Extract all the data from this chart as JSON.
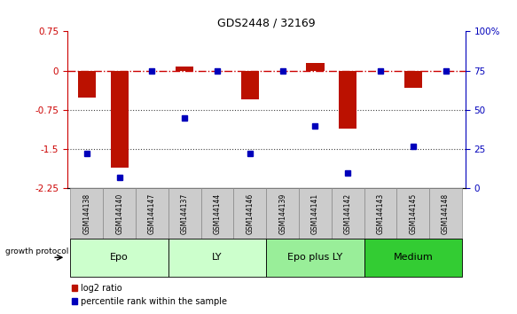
{
  "title": "GDS2448 / 32169",
  "samples": [
    "GSM144138",
    "GSM144140",
    "GSM144147",
    "GSM144137",
    "GSM144144",
    "GSM144146",
    "GSM144139",
    "GSM144141",
    "GSM144142",
    "GSM144143",
    "GSM144145",
    "GSM144148"
  ],
  "log2_ratios": [
    -0.52,
    -1.85,
    0.0,
    0.08,
    0.0,
    -0.55,
    0.0,
    0.15,
    -1.1,
    0.0,
    -0.33,
    0.0
  ],
  "percentile_ranks": [
    22,
    7,
    75,
    45,
    75,
    22,
    75,
    40,
    10,
    75,
    27,
    75
  ],
  "groups": [
    {
      "label": "Epo",
      "start": 0,
      "end": 3,
      "color": "#ccffcc"
    },
    {
      "label": "LY",
      "start": 3,
      "end": 6,
      "color": "#ccffcc"
    },
    {
      "label": "Epo plus LY",
      "start": 6,
      "end": 9,
      "color": "#99ee99"
    },
    {
      "label": "Medium",
      "start": 9,
      "end": 12,
      "color": "#33cc33"
    }
  ],
  "ylim_left": [
    -2.25,
    0.75
  ],
  "ylim_right": [
    0,
    100
  ],
  "yticks_left": [
    0.75,
    0,
    -0.75,
    -1.5,
    -2.25
  ],
  "yticks_right": [
    100,
    75,
    50,
    25,
    0
  ],
  "bar_color": "#bb1100",
  "dot_color": "#0000bb",
  "hline_color": "#cc0000",
  "dotted_line_color": "#444444",
  "background_color": "#ffffff",
  "growth_protocol_label": "growth protocol",
  "legend_bar": "log2 ratio",
  "legend_pct": "percentile rank within the sample",
  "sample_box_color": "#cccccc",
  "sample_box_edge": "#888888",
  "group_border_color": "#000000"
}
